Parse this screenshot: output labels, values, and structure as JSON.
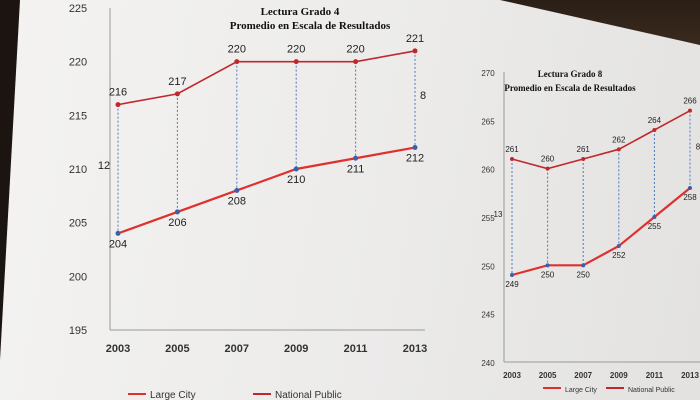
{
  "chart_data": [
    {
      "type": "line",
      "title": "Lectura  Grado 4",
      "subtitle": "Promedio en Escala de Resultados",
      "categories": [
        "2003",
        "2005",
        "2007",
        "2009",
        "2011",
        "2013"
      ],
      "ylim": [
        195,
        225
      ],
      "yticks": [
        "195",
        "200",
        "205",
        "210",
        "215",
        "220",
        "225"
      ],
      "series": [
        {
          "name": "Large City",
          "values": [
            204,
            206,
            208,
            210,
            211,
            212
          ],
          "labels": [
            "204",
            "206",
            "208",
            "210",
            "211",
            "212"
          ],
          "color": "#e0302e"
        },
        {
          "name": "National Public",
          "values": [
            216,
            217,
            220,
            220,
            220,
            221
          ],
          "labels": [
            "216",
            "217",
            "220",
            "220",
            "220",
            "221"
          ],
          "color": "#c0282c"
        }
      ],
      "annotations": [
        {
          "text": "12",
          "at": "2003"
        },
        {
          "text": "8",
          "at": "2013"
        }
      ],
      "legend": {
        "placement": "bottom",
        "items": [
          "Large City",
          "National Public"
        ]
      }
    },
    {
      "type": "line",
      "title": "Lectura Grado 8",
      "subtitle": "Promedio en Escala de Resultados",
      "categories": [
        "2003",
        "2005",
        "2007",
        "2009",
        "2011",
        "2013"
      ],
      "ylim": [
        240,
        270
      ],
      "yticks": [
        "240",
        "245",
        "250",
        "255",
        "260",
        "265",
        "270"
      ],
      "series": [
        {
          "name": "Large City",
          "values": [
            249,
            250,
            250,
            252,
            255,
            258
          ],
          "labels": [
            "249",
            "250",
            "250",
            "252",
            "255",
            "258"
          ],
          "color": "#e0302e"
        },
        {
          "name": "National Public",
          "values": [
            261,
            260,
            261,
            262,
            264,
            266
          ],
          "labels": [
            "261",
            "260",
            "261",
            "262",
            "264",
            "266"
          ],
          "color": "#c0282c"
        }
      ],
      "annotations": [
        {
          "text": "13",
          "at": "2003"
        },
        {
          "text": "8",
          "at": "2013"
        }
      ],
      "legend": {
        "placement": "bottom",
        "items": [
          "Large City",
          "National Public"
        ]
      }
    }
  ]
}
